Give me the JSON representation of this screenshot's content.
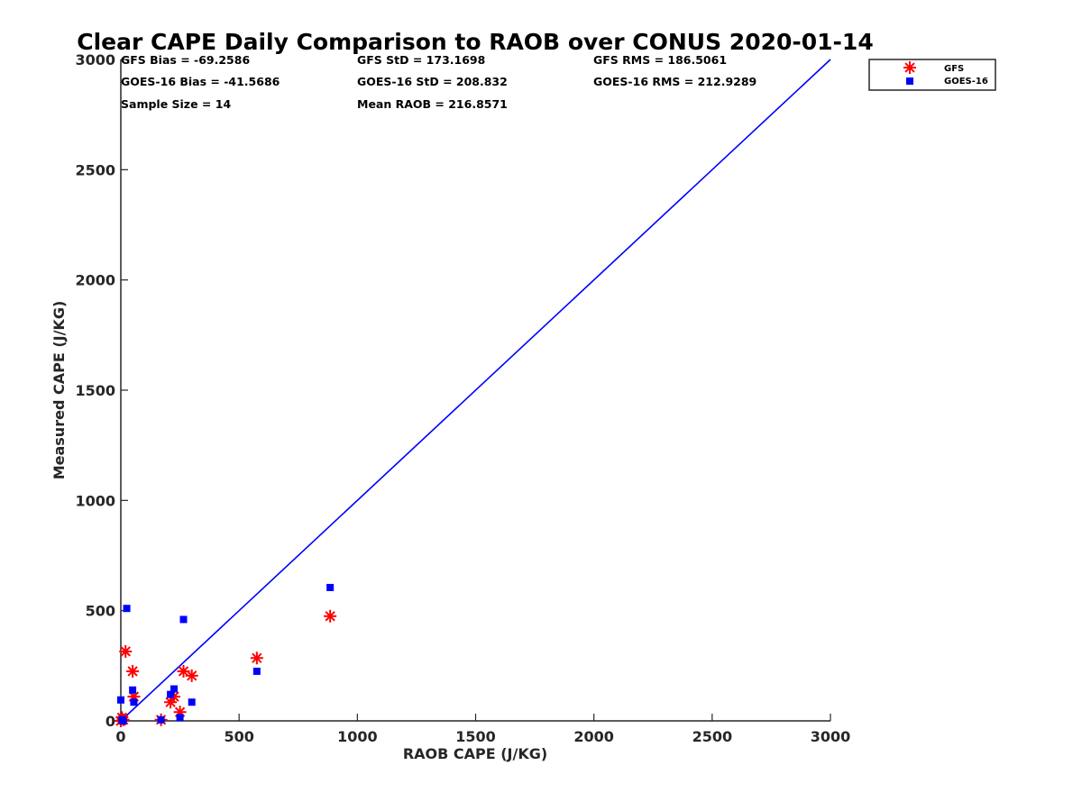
{
  "chart_data": {
    "type": "scatter",
    "title": "Clear CAPE Daily Comparison to RAOB over CONUS 2020-01-14",
    "xlabel": "RAOB CAPE (J/KG)",
    "ylabel": "Measured CAPE (J/KG)",
    "xlim": [
      0,
      3000
    ],
    "ylim": [
      0,
      3000
    ],
    "xticks": [
      "0",
      "500",
      "1000",
      "1500",
      "2000",
      "2500",
      "3000"
    ],
    "yticks": [
      "0",
      "500",
      "1000",
      "1500",
      "2000",
      "2500",
      "3000"
    ],
    "grid": false,
    "legend_position": "top-right",
    "stats": [
      "GFS Bias = -69.2586",
      "GFS StD = 173.1698",
      "GFS RMS = 186.5061",
      "GOES-16 Bias = -41.5686",
      "GOES-16 StD = 208.832",
      "GOES-16 RMS = 212.9289",
      "Sample Size = 14",
      "Mean RAOB = 216.8571"
    ],
    "reference_line": {
      "x": [
        0,
        3000
      ],
      "y": [
        0,
        3000
      ],
      "color": "#0000ff"
    },
    "series": [
      {
        "name": "GFS",
        "marker": "asterisk",
        "color": "#ff0000",
        "x": [
          0,
          5,
          10,
          20,
          50,
          55,
          170,
          210,
          225,
          250,
          265,
          300,
          575,
          885
        ],
        "y": [
          0,
          15,
          5,
          315,
          225,
          110,
          5,
          85,
          110,
          40,
          225,
          205,
          285,
          475
        ]
      },
      {
        "name": "GOES-16",
        "marker": "square",
        "color": "#0000ff",
        "x": [
          0,
          5,
          10,
          25,
          50,
          55,
          170,
          210,
          225,
          250,
          265,
          300,
          575,
          885
        ],
        "y": [
          95,
          5,
          0,
          510,
          140,
          85,
          5,
          120,
          145,
          15,
          460,
          85,
          225,
          605
        ]
      }
    ]
  }
}
